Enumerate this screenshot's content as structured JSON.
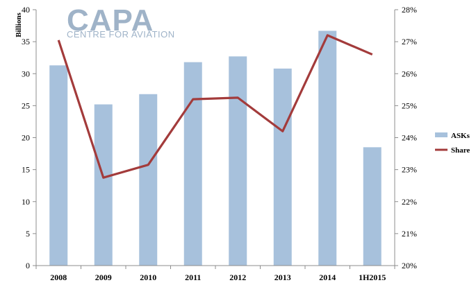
{
  "logo": {
    "main": "CAPA",
    "sub": "CENTRE FOR AVIATION"
  },
  "chart_data": {
    "type": "bar",
    "categories": [
      "2008",
      "2009",
      "2010",
      "2011",
      "2012",
      "2013",
      "2014",
      "1H2015"
    ],
    "ylabel": "Billions",
    "ylim": [
      0,
      40
    ],
    "y_ticks": [
      "0",
      "5",
      "10",
      "15",
      "20",
      "25",
      "30",
      "35",
      "40"
    ],
    "y2lim": [
      20,
      28
    ],
    "y2_ticks": [
      "20%",
      "21%",
      "22%",
      "23%",
      "24%",
      "25%",
      "26%",
      "27%",
      "28%"
    ],
    "series": [
      {
        "name": "ASKs",
        "type": "bar",
        "axis": "left",
        "color": "#a7c1dc",
        "values": [
          31.3,
          25.2,
          26.8,
          31.8,
          32.7,
          30.8,
          36.7,
          18.5
        ]
      },
      {
        "name": "Share",
        "type": "line",
        "axis": "right",
        "unit": "%",
        "color": "#a33b3b",
        "values": [
          27.05,
          22.75,
          23.15,
          25.2,
          25.25,
          24.2,
          27.2,
          26.6
        ]
      }
    ],
    "legend": "right",
    "grid": false
  }
}
